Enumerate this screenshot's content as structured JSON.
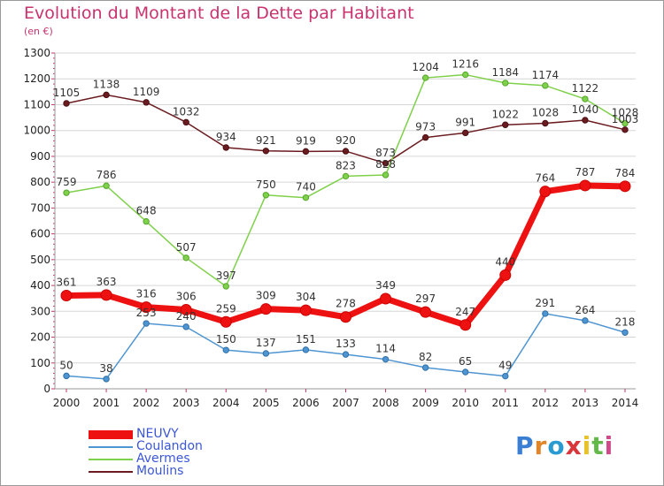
{
  "title": "Evolution du Montant de la Dette par Habitant",
  "unit": "(en €)",
  "logo_text": "Proxiti",
  "chart_data": {
    "type": "line",
    "title": "Evolution du Montant de la Dette par Habitant",
    "ylabel": "(en €)",
    "xlabel": "",
    "ylim": [
      0,
      1300
    ],
    "yticks": [
      0,
      100,
      200,
      300,
      400,
      500,
      600,
      700,
      800,
      900,
      1000,
      1100,
      1200,
      1300
    ],
    "grid": "horizontal",
    "legend_position": "bottom-left",
    "categories": [
      "2000",
      "2001",
      "2002",
      "2003",
      "2004",
      "2005",
      "2006",
      "2007",
      "2008",
      "2009",
      "2010",
      "2011",
      "2012",
      "2013",
      "2014"
    ],
    "series": [
      {
        "name": "NEUVY",
        "color": "#ee1111",
        "values": [
          361,
          363,
          316,
          306,
          259,
          309,
          304,
          278,
          349,
          297,
          247,
          440,
          764,
          787,
          784
        ]
      },
      {
        "name": "Coulandon",
        "color": "#4f95d1",
        "values": [
          50,
          38,
          253,
          240,
          150,
          137,
          151,
          133,
          114,
          82,
          65,
          49,
          291,
          264,
          218
        ]
      },
      {
        "name": "Avermes",
        "color": "#7fd04a",
        "values": [
          759,
          786,
          648,
          507,
          397,
          750,
          740,
          823,
          828,
          1204,
          1216,
          1184,
          1174,
          1122,
          1028
        ]
      },
      {
        "name": "Moulins",
        "color": "#6b1c20",
        "values": [
          1105,
          1138,
          1109,
          1032,
          934,
          921,
          919,
          920,
          873,
          973,
          991,
          1022,
          1028,
          1040,
          1003
        ]
      }
    ]
  }
}
